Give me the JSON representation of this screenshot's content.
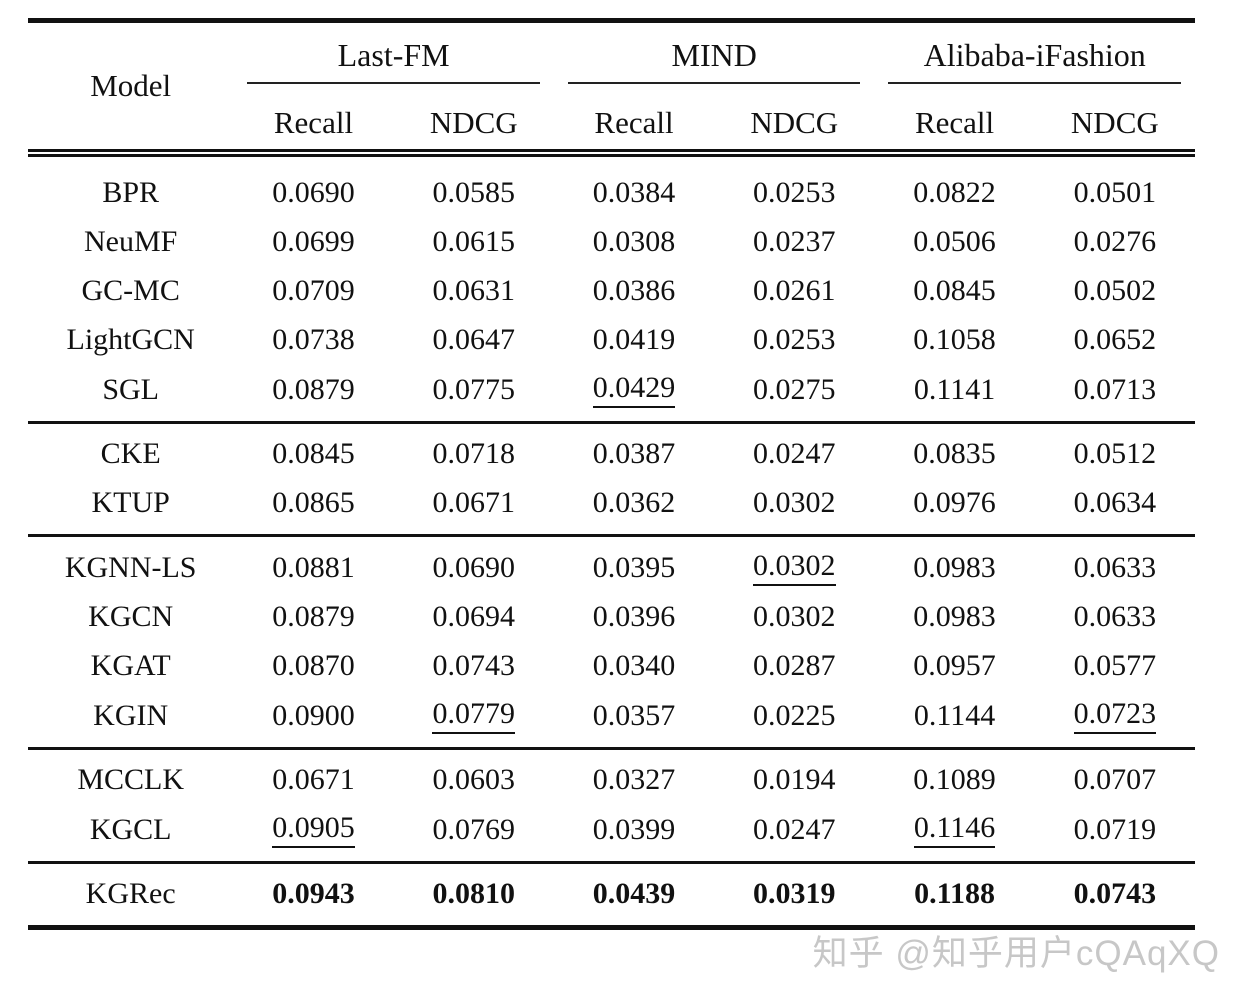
{
  "table": {
    "model_header": "Model",
    "groups": [
      {
        "label": "Last-FM"
      },
      {
        "label": "MIND"
      },
      {
        "label": "Alibaba-iFashion"
      }
    ],
    "metric_headers": [
      "Recall",
      "NDCG",
      "Recall",
      "NDCG",
      "Recall",
      "NDCG"
    ],
    "sections": [
      {
        "rows": [
          {
            "model": "BPR",
            "values": [
              "0.0690",
              "0.0585",
              "0.0384",
              "0.0253",
              "0.0822",
              "0.0501"
            ]
          },
          {
            "model": "NeuMF",
            "values": [
              "0.0699",
              "0.0615",
              "0.0308",
              "0.0237",
              "0.0506",
              "0.0276"
            ]
          },
          {
            "model": "GC-MC",
            "values": [
              "0.0709",
              "0.0631",
              "0.0386",
              "0.0261",
              "0.0845",
              "0.0502"
            ]
          },
          {
            "model": "LightGCN",
            "values": [
              "0.0738",
              "0.0647",
              "0.0419",
              "0.0253",
              "0.1058",
              "0.0652"
            ]
          },
          {
            "model": "SGL",
            "values": [
              "0.0879",
              "0.0775",
              "0.0429",
              "0.0275",
              "0.1141",
              "0.0713"
            ],
            "underline": [
              2
            ]
          }
        ]
      },
      {
        "rows": [
          {
            "model": "CKE",
            "values": [
              "0.0845",
              "0.0718",
              "0.0387",
              "0.0247",
              "0.0835",
              "0.0512"
            ]
          },
          {
            "model": "KTUP",
            "values": [
              "0.0865",
              "0.0671",
              "0.0362",
              "0.0302",
              "0.0976",
              "0.0634"
            ]
          }
        ]
      },
      {
        "rows": [
          {
            "model": "KGNN-LS",
            "values": [
              "0.0881",
              "0.0690",
              "0.0395",
              "0.0302",
              "0.0983",
              "0.0633"
            ],
            "underline": [
              3
            ]
          },
          {
            "model": "KGCN",
            "values": [
              "0.0879",
              "0.0694",
              "0.0396",
              "0.0302",
              "0.0983",
              "0.0633"
            ]
          },
          {
            "model": "KGAT",
            "values": [
              "0.0870",
              "0.0743",
              "0.0340",
              "0.0287",
              "0.0957",
              "0.0577"
            ]
          },
          {
            "model": "KGIN",
            "values": [
              "0.0900",
              "0.0779",
              "0.0357",
              "0.0225",
              "0.1144",
              "0.0723"
            ],
            "underline": [
              1,
              5
            ]
          }
        ]
      },
      {
        "rows": [
          {
            "model": "MCCLK",
            "values": [
              "0.0671",
              "0.0603",
              "0.0327",
              "0.0194",
              "0.1089",
              "0.0707"
            ]
          },
          {
            "model": "KGCL",
            "values": [
              "0.0905",
              "0.0769",
              "0.0399",
              "0.0247",
              "0.1146",
              "0.0719"
            ],
            "underline": [
              0,
              4
            ]
          }
        ]
      },
      {
        "rows": [
          {
            "model": "KGRec",
            "values": [
              "0.0943",
              "0.0810",
              "0.0439",
              "0.0319",
              "0.1188",
              "0.0743"
            ],
            "bold": true
          }
        ]
      }
    ]
  },
  "watermark": {
    "text": "知乎 @知乎用户cQAqXQ"
  }
}
